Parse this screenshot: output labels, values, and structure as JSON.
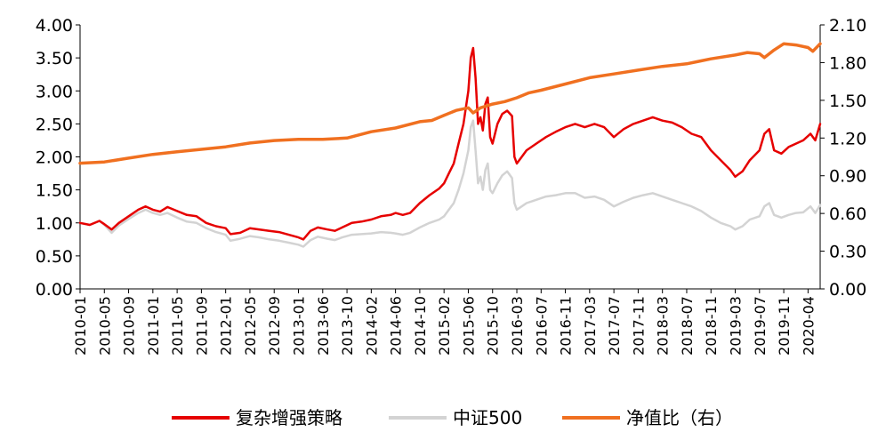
{
  "chart_data": {
    "type": "line",
    "title": "",
    "xlabel": "",
    "ylabel": "",
    "ylim_left": [
      0,
      4
    ],
    "ylim_right": [
      0,
      2.1
    ],
    "yticks_left": [
      "0.00",
      "0.50",
      "1.00",
      "1.50",
      "2.00",
      "2.50",
      "3.00",
      "3.50",
      "4.00"
    ],
    "yticks_right": [
      "0.00",
      "0.30",
      "0.60",
      "0.90",
      "1.20",
      "1.50",
      "1.80",
      "2.10"
    ],
    "xticks": [
      "2010-01",
      "2010-05",
      "2010-09",
      "2011-01",
      "2011-05",
      "2011-09",
      "2012-01",
      "2012-05",
      "2012-09",
      "2013-01",
      "2013-06",
      "2013-10",
      "2014-02",
      "2014-06",
      "2014-10",
      "2015-02",
      "2015-06",
      "2015-10",
      "2016-03",
      "2016-07",
      "2016-11",
      "2017-03",
      "2017-07",
      "2017-11",
      "2018-03",
      "2018-07",
      "2018-11",
      "2019-03",
      "2019-07",
      "2019-11",
      "2020-04"
    ],
    "x_range": [
      0,
      30.5
    ],
    "grid": false,
    "legend_position": "bottom",
    "series": [
      {
        "name": "复杂增强策略",
        "axis": "left",
        "color": "#e60000",
        "points": [
          [
            0,
            1.0
          ],
          [
            0.4,
            0.97
          ],
          [
            0.8,
            1.03
          ],
          [
            1.0,
            0.98
          ],
          [
            1.3,
            0.9
          ],
          [
            1.6,
            1.0
          ],
          [
            2.0,
            1.1
          ],
          [
            2.4,
            1.2
          ],
          [
            2.7,
            1.25
          ],
          [
            3.0,
            1.2
          ],
          [
            3.3,
            1.17
          ],
          [
            3.6,
            1.24
          ],
          [
            4.0,
            1.18
          ],
          [
            4.4,
            1.12
          ],
          [
            4.8,
            1.1
          ],
          [
            5.2,
            1.0
          ],
          [
            5.6,
            0.95
          ],
          [
            6.0,
            0.92
          ],
          [
            6.2,
            0.83
          ],
          [
            6.6,
            0.85
          ],
          [
            7.0,
            0.92
          ],
          [
            7.4,
            0.9
          ],
          [
            7.8,
            0.88
          ],
          [
            8.2,
            0.86
          ],
          [
            8.6,
            0.82
          ],
          [
            9.0,
            0.78
          ],
          [
            9.2,
            0.75
          ],
          [
            9.5,
            0.88
          ],
          [
            9.8,
            0.93
          ],
          [
            10.2,
            0.9
          ],
          [
            10.5,
            0.88
          ],
          [
            10.8,
            0.93
          ],
          [
            11.2,
            1.0
          ],
          [
            11.6,
            1.02
          ],
          [
            12.0,
            1.05
          ],
          [
            12.4,
            1.1
          ],
          [
            12.8,
            1.12
          ],
          [
            13.0,
            1.15
          ],
          [
            13.3,
            1.12
          ],
          [
            13.6,
            1.15
          ],
          [
            14.0,
            1.3
          ],
          [
            14.4,
            1.42
          ],
          [
            14.8,
            1.52
          ],
          [
            15.0,
            1.6
          ],
          [
            15.2,
            1.75
          ],
          [
            15.4,
            1.9
          ],
          [
            15.6,
            2.2
          ],
          [
            15.8,
            2.5
          ],
          [
            16.0,
            3.0
          ],
          [
            16.1,
            3.5
          ],
          [
            16.2,
            3.65
          ],
          [
            16.3,
            3.2
          ],
          [
            16.4,
            2.5
          ],
          [
            16.5,
            2.6
          ],
          [
            16.6,
            2.4
          ],
          [
            16.7,
            2.8
          ],
          [
            16.8,
            2.9
          ],
          [
            16.9,
            2.3
          ],
          [
            17.0,
            2.2
          ],
          [
            17.2,
            2.5
          ],
          [
            17.4,
            2.65
          ],
          [
            17.6,
            2.7
          ],
          [
            17.8,
            2.62
          ],
          [
            17.9,
            2.0
          ],
          [
            18.0,
            1.9
          ],
          [
            18.2,
            2.0
          ],
          [
            18.4,
            2.1
          ],
          [
            18.8,
            2.2
          ],
          [
            19.2,
            2.3
          ],
          [
            19.6,
            2.38
          ],
          [
            20.0,
            2.45
          ],
          [
            20.4,
            2.5
          ],
          [
            20.8,
            2.45
          ],
          [
            21.2,
            2.5
          ],
          [
            21.6,
            2.45
          ],
          [
            22.0,
            2.3
          ],
          [
            22.4,
            2.42
          ],
          [
            22.8,
            2.5
          ],
          [
            23.2,
            2.55
          ],
          [
            23.6,
            2.6
          ],
          [
            24.0,
            2.55
          ],
          [
            24.4,
            2.52
          ],
          [
            24.8,
            2.45
          ],
          [
            25.2,
            2.35
          ],
          [
            25.6,
            2.3
          ],
          [
            26.0,
            2.1
          ],
          [
            26.4,
            1.95
          ],
          [
            26.8,
            1.8
          ],
          [
            27.0,
            1.7
          ],
          [
            27.3,
            1.78
          ],
          [
            27.6,
            1.95
          ],
          [
            28.0,
            2.1
          ],
          [
            28.2,
            2.35
          ],
          [
            28.4,
            2.42
          ],
          [
            28.6,
            2.1
          ],
          [
            28.9,
            2.05
          ],
          [
            29.2,
            2.15
          ],
          [
            29.5,
            2.2
          ],
          [
            29.8,
            2.25
          ],
          [
            30.1,
            2.35
          ],
          [
            30.3,
            2.25
          ],
          [
            30.5,
            2.5
          ]
        ]
      },
      {
        "name": "中证500",
        "axis": "left",
        "color": "#d3d3d3",
        "points": [
          [
            0,
            1.0
          ],
          [
            0.4,
            0.97
          ],
          [
            0.8,
            1.03
          ],
          [
            1.0,
            0.97
          ],
          [
            1.3,
            0.85
          ],
          [
            1.6,
            0.96
          ],
          [
            2.0,
            1.06
          ],
          [
            2.4,
            1.15
          ],
          [
            2.7,
            1.2
          ],
          [
            3.0,
            1.15
          ],
          [
            3.3,
            1.12
          ],
          [
            3.6,
            1.15
          ],
          [
            4.0,
            1.08
          ],
          [
            4.4,
            1.02
          ],
          [
            4.8,
            1.0
          ],
          [
            5.2,
            0.92
          ],
          [
            5.6,
            0.86
          ],
          [
            6.0,
            0.82
          ],
          [
            6.2,
            0.73
          ],
          [
            6.6,
            0.76
          ],
          [
            7.0,
            0.8
          ],
          [
            7.4,
            0.78
          ],
          [
            7.8,
            0.75
          ],
          [
            8.2,
            0.73
          ],
          [
            8.6,
            0.7
          ],
          [
            9.0,
            0.67
          ],
          [
            9.2,
            0.64
          ],
          [
            9.5,
            0.74
          ],
          [
            9.8,
            0.79
          ],
          [
            10.2,
            0.76
          ],
          [
            10.5,
            0.74
          ],
          [
            10.8,
            0.78
          ],
          [
            11.2,
            0.82
          ],
          [
            11.6,
            0.83
          ],
          [
            12.0,
            0.84
          ],
          [
            12.4,
            0.86
          ],
          [
            12.8,
            0.85
          ],
          [
            13.0,
            0.84
          ],
          [
            13.3,
            0.82
          ],
          [
            13.6,
            0.85
          ],
          [
            14.0,
            0.93
          ],
          [
            14.4,
            1.0
          ],
          [
            14.8,
            1.05
          ],
          [
            15.0,
            1.1
          ],
          [
            15.2,
            1.2
          ],
          [
            15.4,
            1.3
          ],
          [
            15.6,
            1.5
          ],
          [
            15.8,
            1.75
          ],
          [
            16.0,
            2.1
          ],
          [
            16.1,
            2.45
          ],
          [
            16.2,
            2.55
          ],
          [
            16.3,
            2.1
          ],
          [
            16.4,
            1.6
          ],
          [
            16.5,
            1.7
          ],
          [
            16.6,
            1.5
          ],
          [
            16.7,
            1.8
          ],
          [
            16.8,
            1.9
          ],
          [
            16.9,
            1.5
          ],
          [
            17.0,
            1.45
          ],
          [
            17.2,
            1.6
          ],
          [
            17.4,
            1.72
          ],
          [
            17.6,
            1.78
          ],
          [
            17.8,
            1.68
          ],
          [
            17.9,
            1.3
          ],
          [
            18.0,
            1.2
          ],
          [
            18.2,
            1.25
          ],
          [
            18.4,
            1.3
          ],
          [
            18.8,
            1.35
          ],
          [
            19.2,
            1.4
          ],
          [
            19.6,
            1.42
          ],
          [
            20.0,
            1.45
          ],
          [
            20.4,
            1.45
          ],
          [
            20.8,
            1.38
          ],
          [
            21.2,
            1.4
          ],
          [
            21.6,
            1.35
          ],
          [
            22.0,
            1.25
          ],
          [
            22.4,
            1.32
          ],
          [
            22.8,
            1.38
          ],
          [
            23.2,
            1.42
          ],
          [
            23.6,
            1.45
          ],
          [
            24.0,
            1.4
          ],
          [
            24.4,
            1.35
          ],
          [
            24.8,
            1.3
          ],
          [
            25.2,
            1.25
          ],
          [
            25.6,
            1.18
          ],
          [
            26.0,
            1.08
          ],
          [
            26.4,
            1.0
          ],
          [
            26.8,
            0.95
          ],
          [
            27.0,
            0.9
          ],
          [
            27.3,
            0.95
          ],
          [
            27.6,
            1.05
          ],
          [
            28.0,
            1.1
          ],
          [
            28.2,
            1.25
          ],
          [
            28.4,
            1.3
          ],
          [
            28.6,
            1.12
          ],
          [
            28.9,
            1.08
          ],
          [
            29.2,
            1.12
          ],
          [
            29.5,
            1.15
          ],
          [
            29.8,
            1.16
          ],
          [
            30.1,
            1.25
          ],
          [
            30.3,
            1.15
          ],
          [
            30.5,
            1.27
          ]
        ]
      },
      {
        "name": "净值比（右）",
        "axis": "right",
        "color": "#f07020",
        "points": [
          [
            0,
            1.0
          ],
          [
            1.0,
            1.01
          ],
          [
            2.0,
            1.04
          ],
          [
            3.0,
            1.07
          ],
          [
            4.0,
            1.09
          ],
          [
            5.0,
            1.11
          ],
          [
            6.0,
            1.13
          ],
          [
            7.0,
            1.16
          ],
          [
            8.0,
            1.18
          ],
          [
            9.0,
            1.19
          ],
          [
            10.0,
            1.19
          ],
          [
            11.0,
            1.2
          ],
          [
            12.0,
            1.25
          ],
          [
            13.0,
            1.28
          ],
          [
            14.0,
            1.33
          ],
          [
            14.5,
            1.34
          ],
          [
            15.0,
            1.38
          ],
          [
            15.5,
            1.42
          ],
          [
            16.0,
            1.44
          ],
          [
            16.2,
            1.4
          ],
          [
            16.5,
            1.44
          ],
          [
            17.0,
            1.47
          ],
          [
            17.5,
            1.49
          ],
          [
            18.0,
            1.52
          ],
          [
            18.5,
            1.56
          ],
          [
            19.0,
            1.58
          ],
          [
            20.0,
            1.63
          ],
          [
            21.0,
            1.68
          ],
          [
            22.0,
            1.71
          ],
          [
            23.0,
            1.74
          ],
          [
            24.0,
            1.77
          ],
          [
            25.0,
            1.79
          ],
          [
            25.5,
            1.81
          ],
          [
            26.0,
            1.83
          ],
          [
            27.0,
            1.86
          ],
          [
            27.5,
            1.88
          ],
          [
            28.0,
            1.87
          ],
          [
            28.2,
            1.84
          ],
          [
            28.6,
            1.9
          ],
          [
            29.0,
            1.95
          ],
          [
            29.5,
            1.94
          ],
          [
            30.0,
            1.92
          ],
          [
            30.2,
            1.89
          ],
          [
            30.5,
            1.95
          ]
        ]
      }
    ]
  }
}
